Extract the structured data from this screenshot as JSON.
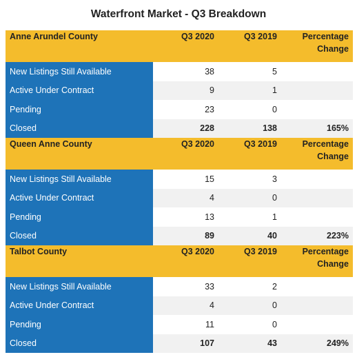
{
  "title": "Waterfront Market - Q3 Breakdown",
  "sections": [
    {
      "header": [
        "Anne Arundel County",
        "Q3 2020",
        "Q3 2019",
        "Percentage Change"
      ],
      "rows": [
        [
          "New Listings Still Available",
          38,
          5
        ],
        [
          "Active Under Contract",
          9,
          1
        ],
        [
          "Pending",
          23,
          0
        ],
        [
          "Closed",
          228,
          138,
          "165%"
        ]
      ]
    },
    {
      "header": [
        "Queen Anne County",
        "Q3 2020",
        "Q3 2019",
        "Percentage Change"
      ],
      "rows": [
        [
          "New Listings Still Available",
          15,
          3
        ],
        [
          "Active Under Contract",
          4,
          0
        ],
        [
          "Pending",
          13,
          1
        ],
        [
          "Closed",
          89,
          40,
          "223%"
        ]
      ]
    },
    {
      "header": [
        "Talbot County",
        "Q3 2020",
        "Q3 2019",
        "Percentage Change"
      ],
      "rows": [
        [
          "New Listings Still Available",
          33,
          2
        ],
        [
          "Active Under Contract",
          4,
          0
        ],
        [
          "Pending",
          11,
          0
        ],
        [
          "Closed",
          107,
          43,
          "249%"
        ]
      ]
    }
  ]
}
